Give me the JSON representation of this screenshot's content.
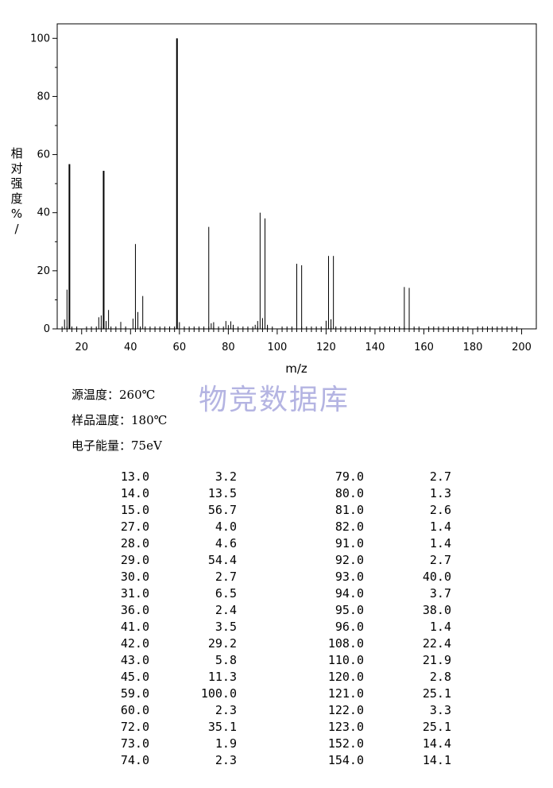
{
  "chart_data": {
    "type": "bar",
    "xlabel": "m/z",
    "ylabel_chars": [
      "相",
      "对",
      "强",
      "度",
      "%",
      "/"
    ],
    "xlim": [
      10,
      206
    ],
    "ylim": [
      0,
      105
    ],
    "x_ticks": [
      20,
      40,
      60,
      80,
      100,
      120,
      140,
      160,
      180,
      200
    ],
    "y_ticks": [
      0,
      20,
      40,
      60,
      80,
      100
    ],
    "grid": false,
    "peaks": [
      {
        "mz": 13.0,
        "intensity": 3.2
      },
      {
        "mz": 14.0,
        "intensity": 13.5
      },
      {
        "mz": 15.0,
        "intensity": 56.7
      },
      {
        "mz": 27.0,
        "intensity": 4.0
      },
      {
        "mz": 28.0,
        "intensity": 4.6
      },
      {
        "mz": 29.0,
        "intensity": 54.4
      },
      {
        "mz": 30.0,
        "intensity": 2.7
      },
      {
        "mz": 31.0,
        "intensity": 6.5
      },
      {
        "mz": 36.0,
        "intensity": 2.4
      },
      {
        "mz": 41.0,
        "intensity": 3.5
      },
      {
        "mz": 42.0,
        "intensity": 29.2
      },
      {
        "mz": 43.0,
        "intensity": 5.8
      },
      {
        "mz": 45.0,
        "intensity": 11.3
      },
      {
        "mz": 59.0,
        "intensity": 100.0
      },
      {
        "mz": 60.0,
        "intensity": 2.3
      },
      {
        "mz": 72.0,
        "intensity": 35.1
      },
      {
        "mz": 73.0,
        "intensity": 1.9
      },
      {
        "mz": 74.0,
        "intensity": 2.3
      },
      {
        "mz": 79.0,
        "intensity": 2.7
      },
      {
        "mz": 80.0,
        "intensity": 1.3
      },
      {
        "mz": 81.0,
        "intensity": 2.6
      },
      {
        "mz": 82.0,
        "intensity": 1.4
      },
      {
        "mz": 91.0,
        "intensity": 1.4
      },
      {
        "mz": 92.0,
        "intensity": 2.7
      },
      {
        "mz": 93.0,
        "intensity": 40.0
      },
      {
        "mz": 94.0,
        "intensity": 3.7
      },
      {
        "mz": 95.0,
        "intensity": 38.0
      },
      {
        "mz": 96.0,
        "intensity": 1.4
      },
      {
        "mz": 108.0,
        "intensity": 22.4
      },
      {
        "mz": 110.0,
        "intensity": 21.9
      },
      {
        "mz": 120.0,
        "intensity": 2.8
      },
      {
        "mz": 121.0,
        "intensity": 25.1
      },
      {
        "mz": 122.0,
        "intensity": 3.3
      },
      {
        "mz": 123.0,
        "intensity": 25.1
      },
      {
        "mz": 152.0,
        "intensity": 14.4
      },
      {
        "mz": 154.0,
        "intensity": 14.1
      }
    ]
  },
  "watermark": "物竞数据库",
  "conditions": {
    "source_temp": "源温度：260℃",
    "sample_temp": "样品温度：180℃",
    "electron_energy": "电子能量：75eV"
  },
  "table_rows": [
    [
      "13.0",
      "3.2",
      "79.0",
      "2.7"
    ],
    [
      "14.0",
      "13.5",
      "80.0",
      "1.3"
    ],
    [
      "15.0",
      "56.7",
      "81.0",
      "2.6"
    ],
    [
      "27.0",
      "4.0",
      "82.0",
      "1.4"
    ],
    [
      "28.0",
      "4.6",
      "91.0",
      "1.4"
    ],
    [
      "29.0",
      "54.4",
      "92.0",
      "2.7"
    ],
    [
      "30.0",
      "2.7",
      "93.0",
      "40.0"
    ],
    [
      "31.0",
      "6.5",
      "94.0",
      "3.7"
    ],
    [
      "36.0",
      "2.4",
      "95.0",
      "38.0"
    ],
    [
      "41.0",
      "3.5",
      "96.0",
      "1.4"
    ],
    [
      "42.0",
      "29.2",
      "108.0",
      "22.4"
    ],
    [
      "43.0",
      "5.8",
      "110.0",
      "21.9"
    ],
    [
      "45.0",
      "11.3",
      "120.0",
      "2.8"
    ],
    [
      "59.0",
      "100.0",
      "121.0",
      "25.1"
    ],
    [
      "60.0",
      "2.3",
      "122.0",
      "3.3"
    ],
    [
      "72.0",
      "35.1",
      "123.0",
      "25.1"
    ],
    [
      "73.0",
      "1.9",
      "152.0",
      "14.4"
    ],
    [
      "74.0",
      "2.3",
      "154.0",
      "14.1"
    ]
  ]
}
